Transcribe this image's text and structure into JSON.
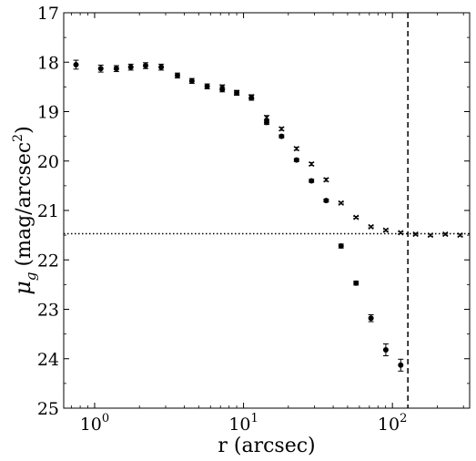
{
  "chart_data": {
    "type": "scatter",
    "title": "",
    "xlabel": "r (arcsec)",
    "ylabel_parts": {
      "base": "μ",
      "sub": "g",
      "unit": "(mag/arcsec",
      "sup": "2",
      "close": ")"
    },
    "x_scale": "log",
    "xlim": [
      0.62,
      330
    ],
    "ylim": [
      17,
      25
    ],
    "y_inverted": true,
    "x_major_ticks": [
      {
        "value": 1,
        "base": "10",
        "exp": "0"
      },
      {
        "value": 10,
        "base": "10",
        "exp": "1"
      },
      {
        "value": 100,
        "base": "10",
        "exp": "2"
      }
    ],
    "y_ticks": [
      "17",
      "18",
      "19",
      "20",
      "21",
      "22",
      "23",
      "24",
      "25"
    ],
    "grid": false,
    "legend": "none",
    "series": [
      {
        "marker": "circle",
        "color": "#000000",
        "points": [
          {
            "x": 0.75,
            "y": 18.05,
            "err": 0.09
          },
          {
            "x": 1.1,
            "y": 18.13,
            "err": 0.07
          },
          {
            "x": 1.4,
            "y": 18.13,
            "err": 0.06
          },
          {
            "x": 1.75,
            "y": 18.1,
            "err": 0.06
          },
          {
            "x": 2.2,
            "y": 18.07,
            "err": 0.06
          },
          {
            "x": 2.8,
            "y": 18.1,
            "err": 0.06
          },
          {
            "x": 3.6,
            "y": 18.27,
            "err": 0.05
          },
          {
            "x": 4.5,
            "y": 18.38,
            "err": 0.05
          },
          {
            "x": 5.7,
            "y": 18.49,
            "err": 0.05
          },
          {
            "x": 7.2,
            "y": 18.55,
            "err": 0.05
          },
          {
            "x": 9.0,
            "y": 18.62,
            "err": 0.05
          },
          {
            "x": 11.3,
            "y": 18.72,
            "err": 0.05
          },
          {
            "x": 14.3,
            "y": 19.22,
            "err": 0.04
          },
          {
            "x": 18.0,
            "y": 19.5,
            "err": 0.03
          },
          {
            "x": 22.7,
            "y": 19.98,
            "err": 0.03
          },
          {
            "x": 28.6,
            "y": 20.4,
            "err": 0.03
          },
          {
            "x": 35.9,
            "y": 20.8,
            "err": 0.03
          },
          {
            "x": 45.2,
            "y": 21.72,
            "err": 0.04
          },
          {
            "x": 57.0,
            "y": 22.47,
            "err": 0.04
          },
          {
            "x": 71.8,
            "y": 23.18,
            "err": 0.07
          },
          {
            "x": 90.3,
            "y": 23.82,
            "err": 0.12
          },
          {
            "x": 113.7,
            "y": 24.13,
            "err": 0.12
          }
        ]
      },
      {
        "marker": "x",
        "color": "#000000",
        "points": [
          {
            "x": 7.2,
            "y": 18.5,
            "err": 0.04
          },
          {
            "x": 9.0,
            "y": 18.62,
            "err": 0.04
          },
          {
            "x": 11.3,
            "y": 18.7,
            "err": 0.04
          },
          {
            "x": 14.3,
            "y": 19.12,
            "err": 0.04
          },
          {
            "x": 18.0,
            "y": 19.35,
            "err": 0.03
          },
          {
            "x": 22.7,
            "y": 19.75,
            "err": 0.03
          },
          {
            "x": 28.6,
            "y": 20.06,
            "err": 0.03
          },
          {
            "x": 35.9,
            "y": 20.38,
            "err": 0.03
          },
          {
            "x": 45.2,
            "y": 20.85,
            "err": 0.02
          },
          {
            "x": 57.0,
            "y": 21.14,
            "err": 0.02
          },
          {
            "x": 71.8,
            "y": 21.33,
            "err": 0.02
          },
          {
            "x": 90.3,
            "y": 21.4,
            "err": 0.02
          },
          {
            "x": 113.7,
            "y": 21.45,
            "err": 0.02
          },
          {
            "x": 143.1,
            "y": 21.48,
            "err": 0.02
          },
          {
            "x": 180.1,
            "y": 21.5,
            "err": 0.02
          },
          {
            "x": 226.6,
            "y": 21.48,
            "err": 0.02
          },
          {
            "x": 285.2,
            "y": 21.5,
            "err": 0.02
          }
        ]
      }
    ],
    "reference_lines": [
      {
        "orientation": "horizontal",
        "value": 21.47,
        "style": "dotted"
      },
      {
        "orientation": "vertical",
        "value": 127,
        "style": "dashed"
      }
    ]
  }
}
